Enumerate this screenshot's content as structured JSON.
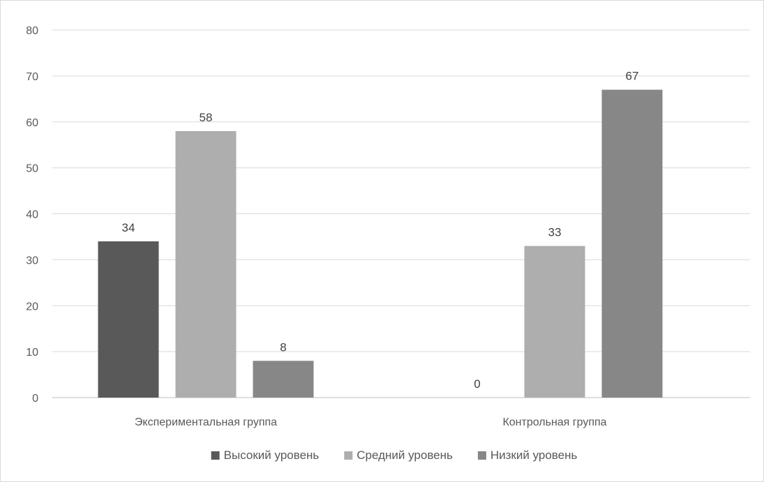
{
  "chart_data": {
    "type": "bar",
    "categories": [
      "Экспериментальная группа",
      "Контрольная группа"
    ],
    "series": [
      {
        "name": "Высокий уровень",
        "values": [
          34,
          0
        ],
        "color": "#595959"
      },
      {
        "name": "Средний уровень",
        "values": [
          58,
          33
        ],
        "color": "#aeaeae"
      },
      {
        "name": "Низкий уровень",
        "values": [
          8,
          67
        ],
        "color": "#878787"
      }
    ],
    "ylim": [
      0,
      80
    ],
    "yticks": [
      0,
      10,
      20,
      30,
      40,
      50,
      60,
      70,
      80
    ],
    "grid": true,
    "legend_position": "bottom",
    "data_labels": true
  }
}
